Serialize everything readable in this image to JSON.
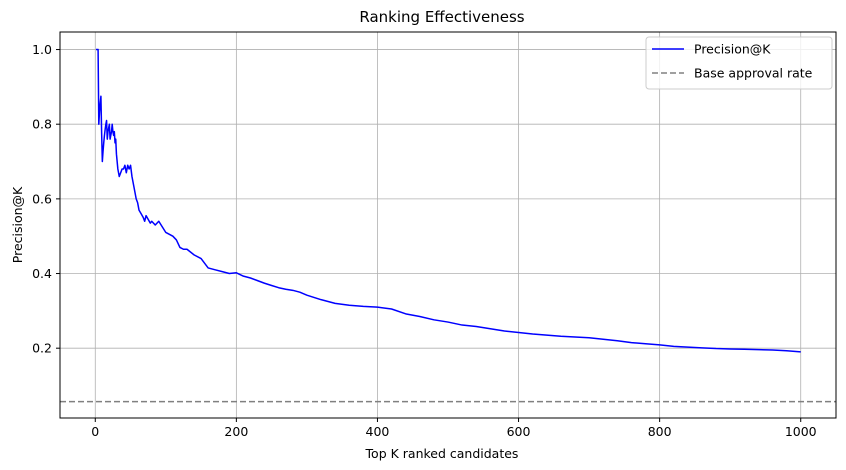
{
  "chart_data": {
    "type": "line",
    "title": "Ranking Effectiveness",
    "xlabel": "Top K ranked candidates",
    "ylabel": "Precision@K",
    "xlim": [
      -50,
      1050
    ],
    "ylim": [
      0.013,
      1.047
    ],
    "xticks": [
      0,
      200,
      400,
      600,
      800,
      1000
    ],
    "yticks": [
      0.2,
      0.4,
      0.6,
      0.8,
      1.0
    ],
    "xtick_labels": [
      "0",
      "200",
      "400",
      "600",
      "800",
      "1000"
    ],
    "ytick_labels": [
      "0.2",
      "0.4",
      "0.6",
      "0.8",
      "1.0"
    ],
    "grid": true,
    "legend_position": "top-right",
    "series": [
      {
        "name": "Precision@K",
        "color": "#0000ff",
        "style": "solid",
        "x": [
          1,
          2,
          3,
          4,
          5,
          6,
          7,
          8,
          9,
          10,
          11,
          12,
          13,
          14,
          15,
          16,
          17,
          18,
          19,
          20,
          21,
          22,
          23,
          24,
          25,
          26,
          27,
          28,
          29,
          30,
          32,
          34,
          36,
          38,
          40,
          42,
          44,
          46,
          48,
          50,
          52,
          55,
          58,
          60,
          62,
          65,
          68,
          70,
          72,
          75,
          78,
          80,
          85,
          90,
          95,
          100,
          105,
          110,
          115,
          120,
          125,
          130,
          140,
          150,
          160,
          170,
          180,
          190,
          200,
          210,
          220,
          230,
          240,
          250,
          260,
          270,
          280,
          290,
          300,
          320,
          340,
          360,
          380,
          400,
          420,
          440,
          460,
          480,
          500,
          520,
          540,
          560,
          580,
          600,
          620,
          640,
          660,
          680,
          700,
          720,
          740,
          760,
          780,
          800,
          820,
          840,
          860,
          880,
          900,
          920,
          940,
          960,
          980,
          1000
        ],
        "y": [
          1.0,
          1.0,
          1.0,
          1.0,
          0.8,
          0.833,
          0.857,
          0.875,
          0.778,
          0.7,
          0.727,
          0.75,
          0.77,
          0.786,
          0.8,
          0.81,
          0.76,
          0.78,
          0.79,
          0.8,
          0.76,
          0.77,
          0.78,
          0.8,
          0.78,
          0.77,
          0.78,
          0.75,
          0.76,
          0.72,
          0.68,
          0.66,
          0.67,
          0.68,
          0.68,
          0.69,
          0.67,
          0.69,
          0.68,
          0.69,
          0.66,
          0.63,
          0.6,
          0.59,
          0.57,
          0.56,
          0.55,
          0.54,
          0.555,
          0.545,
          0.535,
          0.54,
          0.53,
          0.54,
          0.525,
          0.51,
          0.505,
          0.5,
          0.49,
          0.47,
          0.465,
          0.465,
          0.45,
          0.44,
          0.415,
          0.41,
          0.405,
          0.4,
          0.402,
          0.393,
          0.388,
          0.381,
          0.374,
          0.368,
          0.362,
          0.358,
          0.355,
          0.35,
          0.342,
          0.33,
          0.32,
          0.315,
          0.312,
          0.31,
          0.305,
          0.292,
          0.285,
          0.276,
          0.27,
          0.262,
          0.258,
          0.252,
          0.246,
          0.242,
          0.238,
          0.235,
          0.232,
          0.23,
          0.228,
          0.224,
          0.22,
          0.215,
          0.212,
          0.209,
          0.205,
          0.203,
          0.201,
          0.199,
          0.198,
          0.197,
          0.196,
          0.195,
          0.193,
          0.19
        ]
      },
      {
        "name": "Base approval rate",
        "color": "#808080",
        "style": "dashed",
        "y": 0.057
      }
    ]
  }
}
